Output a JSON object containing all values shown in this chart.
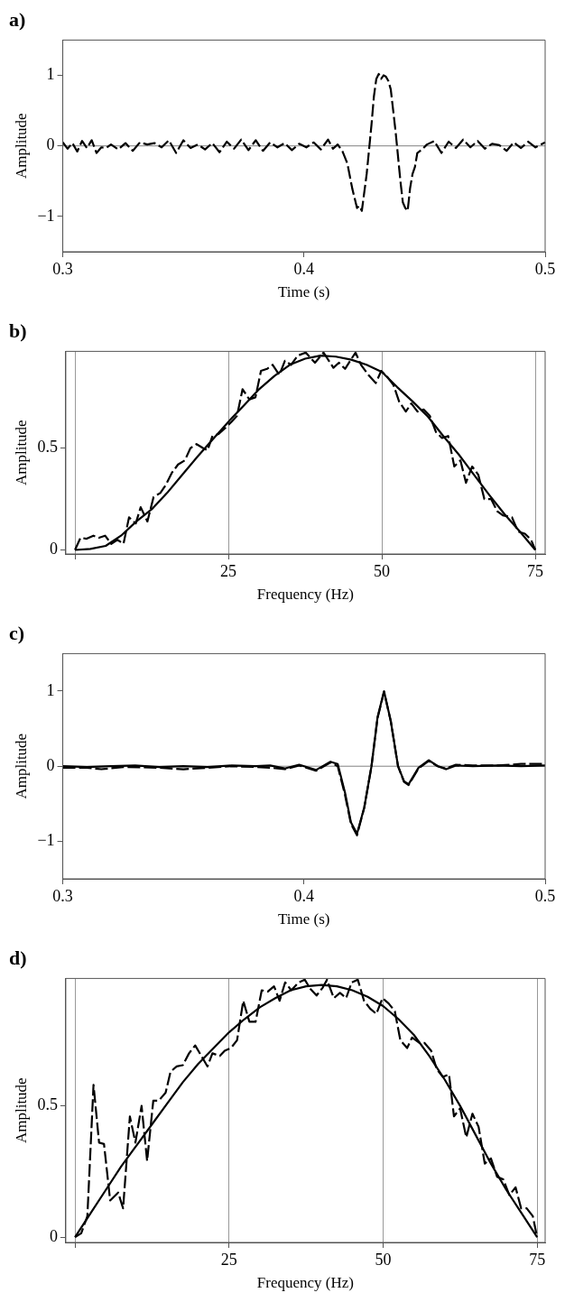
{
  "chart_data": [
    {
      "type": "line",
      "title": "a)",
      "xlabel": "Time (s)",
      "ylabel": "Amplitude",
      "xlim": [
        0.3,
        0.5
      ],
      "xticks": [
        0.3,
        0.4,
        0.5
      ],
      "ylim": [
        -1.5,
        1.5
      ],
      "yticks": [
        -1,
        0,
        1
      ],
      "ref_lines": [
        {
          "axis": "y",
          "value": 0,
          "color": "#808080"
        }
      ],
      "series": [
        {
          "color": "#000000",
          "line_style": "dashed",
          "x": [
            0.3,
            0.302,
            0.304,
            0.306,
            0.308,
            0.31,
            0.312,
            0.314,
            0.316,
            0.318,
            0.32,
            0.323,
            0.326,
            0.329,
            0.332,
            0.335,
            0.338,
            0.341,
            0.344,
            0.347,
            0.35,
            0.353,
            0.356,
            0.359,
            0.362,
            0.365,
            0.368,
            0.371,
            0.374,
            0.377,
            0.38,
            0.383,
            0.386,
            0.389,
            0.392,
            0.395,
            0.398,
            0.401,
            0.404,
            0.407,
            0.41,
            0.412,
            0.414,
            0.416,
            0.418,
            0.42,
            0.422,
            0.423,
            0.424,
            0.426,
            0.428,
            0.429,
            0.43,
            0.431,
            0.432,
            0.433,
            0.434,
            0.435,
            0.436,
            0.438,
            0.44,
            0.441,
            0.442,
            0.443,
            0.444,
            0.445,
            0.446,
            0.447,
            0.449,
            0.451,
            0.454,
            0.457,
            0.46,
            0.463,
            0.466,
            0.469,
            0.472,
            0.475,
            0.478,
            0.481,
            0.484,
            0.487,
            0.49,
            0.493,
            0.496,
            0.5
          ],
          "values": [
            0.05,
            -0.04,
            0.04,
            -0.08,
            0.07,
            -0.03,
            0.08,
            -0.1,
            -0.02,
            -0.03,
            0.02,
            -0.05,
            0.04,
            -0.07,
            0.05,
            0.02,
            0.04,
            -0.02,
            0.08,
            -0.1,
            0.08,
            -0.03,
            0.02,
            -0.05,
            0.04,
            -0.09,
            0.06,
            -0.04,
            0.09,
            -0.06,
            0.08,
            -0.07,
            0.05,
            -0.02,
            0.04,
            -0.06,
            0.03,
            -0.02,
            0.05,
            -0.05,
            0.09,
            -0.04,
            0.02,
            -0.08,
            -0.25,
            -0.6,
            -0.88,
            -0.85,
            -0.92,
            -0.4,
            0.3,
            0.7,
            0.95,
            1.02,
            0.95,
            1.0,
            0.98,
            0.92,
            0.8,
            0.2,
            -0.5,
            -0.8,
            -0.88,
            -0.92,
            -0.6,
            -0.4,
            -0.3,
            -0.1,
            -0.05,
            0.02,
            0.07,
            -0.1,
            0.06,
            -0.03,
            0.09,
            -0.02,
            0.07,
            -0.04,
            0.03,
            0.01,
            -0.07,
            0.05,
            -0.03,
            0.06,
            -0.02,
            0.05
          ]
        }
      ]
    },
    {
      "type": "line",
      "title": "b)",
      "xlabel": "Frequency (Hz)",
      "ylabel": "Amplitude",
      "xlim": [
        -1.5,
        76.6
      ],
      "xticks": [
        {
          "value": 0,
          "label": null
        },
        25,
        50,
        75
      ],
      "ylim": [
        -0.02,
        0.976
      ],
      "yticks": [
        0,
        0.5
      ],
      "grid": "x",
      "series": [
        {
          "color": "#000000",
          "line_style": "dashed",
          "x": [
            0,
            0.9,
            1.9,
            3,
            3.9,
            4.9,
            5.9,
            6.9,
            7.9,
            8.8,
            9.9,
            10.7,
            11.8,
            12.8,
            13.9,
            14.8,
            15.8,
            16.8,
            17.9,
            18.8,
            19.8,
            20.9,
            21.6,
            22.4,
            23.4,
            24.5,
            25.5,
            26.4,
            27.3,
            28.4,
            29.4,
            30.3,
            31.3,
            32.2,
            33.3,
            34.2,
            35.2,
            36.3,
            37.6,
            39.1,
            40.5,
            42.1,
            43,
            44,
            45.7,
            46.6,
            47.8,
            49,
            49.9,
            50.9,
            51.9,
            52.8,
            53.9,
            54.8,
            55.8,
            56.8,
            57.8,
            58.8,
            59.8,
            60.8,
            61.8,
            62.8,
            63.7,
            64.7,
            65.7,
            66.7,
            67.8,
            68.8,
            69.7,
            71.2,
            72.2,
            73.3,
            74.3,
            75
          ],
          "values": [
            0,
            0.06,
            0.055,
            0.07,
            0.06,
            0.07,
            0.03,
            0.05,
            0.03,
            0.16,
            0.13,
            0.21,
            0.14,
            0.26,
            0.28,
            0.32,
            0.38,
            0.42,
            0.44,
            0.5,
            0.52,
            0.5,
            0.49,
            0.56,
            0.57,
            0.6,
            0.63,
            0.66,
            0.79,
            0.74,
            0.75,
            0.88,
            0.89,
            0.91,
            0.86,
            0.93,
            0.91,
            0.955,
            0.97,
            0.92,
            0.97,
            0.895,
            0.92,
            0.89,
            0.97,
            0.91,
            0.86,
            0.82,
            0.88,
            0.85,
            0.81,
            0.73,
            0.68,
            0.72,
            0.68,
            0.69,
            0.66,
            0.58,
            0.55,
            0.56,
            0.41,
            0.44,
            0.33,
            0.41,
            0.37,
            0.25,
            0.25,
            0.19,
            0.17,
            0.16,
            0.09,
            0.08,
            0.05,
            0
          ]
        },
        {
          "color": "#000000",
          "line_style": "solid",
          "x": [
            0,
            2.5,
            5,
            7.5,
            10,
            12.5,
            15,
            17.5,
            20,
            22.5,
            25,
            27.5,
            30,
            32.5,
            35,
            37.5,
            40,
            42.5,
            45,
            47.5,
            50,
            52.5,
            55,
            57.5,
            60,
            62.5,
            65,
            67.5,
            70,
            72.5,
            75
          ],
          "values": [
            0,
            0.005,
            0.02,
            0.07,
            0.14,
            0.2,
            0.28,
            0.37,
            0.46,
            0.545,
            0.63,
            0.71,
            0.79,
            0.855,
            0.91,
            0.94,
            0.955,
            0.95,
            0.935,
            0.91,
            0.875,
            0.8,
            0.73,
            0.655,
            0.56,
            0.47,
            0.37,
            0.27,
            0.175,
            0.09,
            0
          ]
        }
      ]
    },
    {
      "type": "line",
      "title": "c)",
      "xlabel": "Time (s)",
      "ylabel": "Amplitude",
      "xlim": [
        0.3,
        0.5
      ],
      "xticks": [
        0.3,
        0.4,
        0.5
      ],
      "ylim": [
        -1.5,
        1.5
      ],
      "yticks": [
        -1,
        0,
        1
      ],
      "ref_lines": [
        {
          "axis": "y",
          "value": 0,
          "color": "#808080"
        }
      ],
      "series": [
        {
          "color": "#000000",
          "line_style": "dashed",
          "x": [
            0.3,
            0.31,
            0.316,
            0.325,
            0.34,
            0.35,
            0.36,
            0.37,
            0.38,
            0.386,
            0.392,
            0.398,
            0.405,
            0.411,
            0.414,
            0.417,
            0.4195,
            0.422,
            0.425,
            0.428,
            0.4305,
            0.4332,
            0.436,
            0.439,
            0.4415,
            0.4434,
            0.4475,
            0.4517,
            0.4555,
            0.4589,
            0.463,
            0.47,
            0.48,
            0.49,
            0.5
          ],
          "values": [
            -0.02,
            -0.02,
            -0.04,
            -0.01,
            -0.02,
            -0.04,
            -0.02,
            0,
            -0.01,
            -0.02,
            -0.04,
            0.01,
            -0.06,
            0.05,
            0,
            -0.38,
            -0.77,
            -0.92,
            -0.55,
            0,
            0.64,
            0.99,
            0.6,
            0,
            -0.21,
            -0.25,
            -0.03,
            0.07,
            0,
            -0.03,
            0.02,
            0.01,
            0.01,
            0.03,
            0.03
          ]
        },
        {
          "color": "#000000",
          "line_style": "solid",
          "x": [
            0.3,
            0.31,
            0.32,
            0.33,
            0.34,
            0.35,
            0.36,
            0.37,
            0.38,
            0.386,
            0.392,
            0.398,
            0.405,
            0.411,
            0.414,
            0.417,
            0.4195,
            0.422,
            0.425,
            0.428,
            0.4305,
            0.4332,
            0.436,
            0.439,
            0.4415,
            0.4434,
            0.4475,
            0.4517,
            0.4555,
            0.4589,
            0.463,
            0.47,
            0.48,
            0.49,
            0.5
          ],
          "values": [
            0,
            -0.01,
            0,
            0.01,
            -0.01,
            0,
            -0.01,
            0.01,
            0,
            0.01,
            -0.03,
            0.02,
            -0.05,
            0.06,
            0.03,
            -0.35,
            -0.75,
            -0.9,
            -0.55,
            0,
            0.65,
            1.0,
            0.6,
            0,
            -0.2,
            -0.24,
            -0.02,
            0.08,
            0,
            -0.04,
            0.01,
            0,
            0.01,
            0,
            0.01
          ]
        }
      ]
    },
    {
      "type": "line",
      "title": "d)",
      "xlabel": "Frequency (Hz)",
      "ylabel": "Amplitude",
      "xlim": [
        -1.5,
        76.3
      ],
      "xticks": [
        {
          "value": 0,
          "label": null
        },
        25,
        50,
        75
      ],
      "ylim": [
        -0.02,
        0.985
      ],
      "yticks": [
        0,
        0.5
      ],
      "grid": "x",
      "series": [
        {
          "color": "#000000",
          "line_style": "dashed",
          "x": [
            0,
            1,
            2,
            3,
            3.9,
            4.7,
            5.7,
            7,
            7.8,
            8.9,
            9.8,
            10.8,
            11.7,
            12.7,
            13.6,
            14.7,
            15.5,
            16.5,
            17.5,
            18.5,
            19.5,
            20.5,
            21.5,
            22.3,
            23.5,
            24.3,
            25.3,
            26.3,
            27.3,
            28.3,
            29.3,
            30.3,
            31.3,
            32.3,
            33.2,
            34.1,
            35.1,
            36.3,
            37.3,
            38.2,
            39.2,
            40.2,
            40.9,
            42,
            43,
            44,
            44.9,
            45.9,
            46.9,
            47.9,
            48.9,
            49.9,
            50.9,
            51.9,
            52.8,
            53.9,
            54.7,
            55.9,
            56.7,
            57.8,
            58.7,
            59.7,
            60.7,
            61.5,
            62.5,
            63.5,
            64.5,
            65.5,
            66.5,
            67.5,
            68.5,
            69.5,
            70.5,
            71.5,
            72.4,
            73.3,
            74.3,
            75
          ],
          "values": [
            0,
            0.015,
            0.08,
            0.58,
            0.36,
            0.355,
            0.14,
            0.17,
            0.11,
            0.46,
            0.36,
            0.5,
            0.29,
            0.52,
            0.52,
            0.55,
            0.63,
            0.65,
            0.655,
            0.7,
            0.73,
            0.69,
            0.65,
            0.7,
            0.69,
            0.71,
            0.72,
            0.75,
            0.9,
            0.82,
            0.82,
            0.94,
            0.935,
            0.955,
            0.9,
            0.97,
            0.94,
            0.97,
            0.98,
            0.945,
            0.92,
            0.95,
            0.98,
            0.91,
            0.93,
            0.91,
            0.97,
            0.98,
            0.9,
            0.87,
            0.85,
            0.91,
            0.89,
            0.86,
            0.75,
            0.72,
            0.76,
            0.74,
            0.74,
            0.71,
            0.64,
            0.61,
            0.62,
            0.46,
            0.49,
            0.38,
            0.47,
            0.42,
            0.28,
            0.3,
            0.23,
            0.22,
            0.16,
            0.19,
            0.11,
            0.11,
            0.08,
            0
          ]
        },
        {
          "color": "#000000",
          "line_style": "solid",
          "x": [
            0,
            2.5,
            5,
            7.5,
            10,
            12.5,
            15,
            17.5,
            20,
            22.5,
            25,
            27.5,
            30,
            32.5,
            35,
            37.5,
            40,
            42.5,
            45,
            47.5,
            50,
            52.5,
            55,
            57.5,
            60,
            62.5,
            65,
            67.5,
            70,
            72.5,
            75
          ],
          "values": [
            0,
            0.09,
            0.18,
            0.27,
            0.35,
            0.43,
            0.51,
            0.59,
            0.66,
            0.72,
            0.78,
            0.83,
            0.875,
            0.91,
            0.94,
            0.955,
            0.96,
            0.955,
            0.94,
            0.915,
            0.88,
            0.83,
            0.77,
            0.69,
            0.6,
            0.5,
            0.39,
            0.28,
            0.18,
            0.09,
            0
          ]
        }
      ]
    }
  ]
}
